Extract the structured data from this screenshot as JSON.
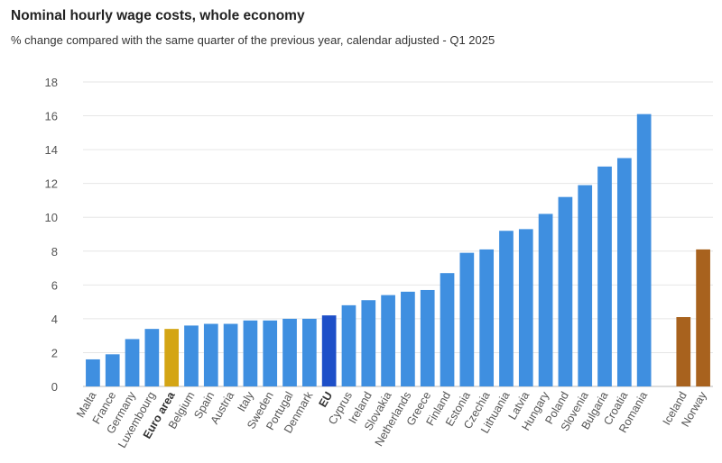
{
  "chart_data": {
    "type": "bar",
    "title": "Nominal hourly wage costs, whole economy",
    "subtitle": "% change compared with the same quarter of the previous year, calendar adjusted - Q1 2025",
    "xlabel": "",
    "ylabel": "",
    "ylim": [
      0,
      18
    ],
    "yticks": [
      0,
      2,
      4,
      6,
      8,
      10,
      12,
      14,
      16,
      18
    ],
    "grid": true,
    "categories": [
      "Malta",
      "France",
      "Germany",
      "Luxembourg",
      "Euro area",
      "Belgium",
      "Spain",
      "Austria",
      "Italy",
      "Sweden",
      "Portugal",
      "Denmark",
      "EU",
      "Cyprus",
      "Ireland",
      "Slovakia",
      "Netherlands",
      "Greece",
      "Finland",
      "Estonia",
      "Czechia",
      "Lithuania",
      "Latvia",
      "Hungary",
      "Poland",
      "Slovenia",
      "Bulgaria",
      "Croatia",
      "Romania",
      "",
      "Iceland",
      "Norway"
    ],
    "values": [
      1.6,
      1.9,
      2.8,
      3.4,
      3.4,
      3.6,
      3.7,
      3.7,
      3.9,
      3.9,
      4.0,
      4.0,
      4.2,
      4.8,
      5.1,
      5.4,
      5.6,
      5.7,
      6.7,
      7.9,
      8.1,
      9.2,
      9.3,
      10.2,
      11.2,
      11.9,
      13.0,
      13.5,
      16.1,
      null,
      4.1,
      8.1
    ],
    "bar_groups": [
      "country",
      "country",
      "country",
      "country",
      "euro-area",
      "country",
      "country",
      "country",
      "country",
      "country",
      "country",
      "country",
      "eu",
      "country",
      "country",
      "country",
      "country",
      "country",
      "country",
      "country",
      "country",
      "country",
      "country",
      "country",
      "country",
      "country",
      "country",
      "country",
      "country",
      "gap",
      "efta",
      "efta"
    ],
    "bold_categories": [
      "Euro area",
      "EU"
    ],
    "colors": {
      "country": "#3f8fe0",
      "euro-area": "#d4a514",
      "eu": "#1e4fc8",
      "efta": "#a8621e",
      "grid": "#e6e6e6",
      "axis": "#bbbbbb"
    }
  }
}
